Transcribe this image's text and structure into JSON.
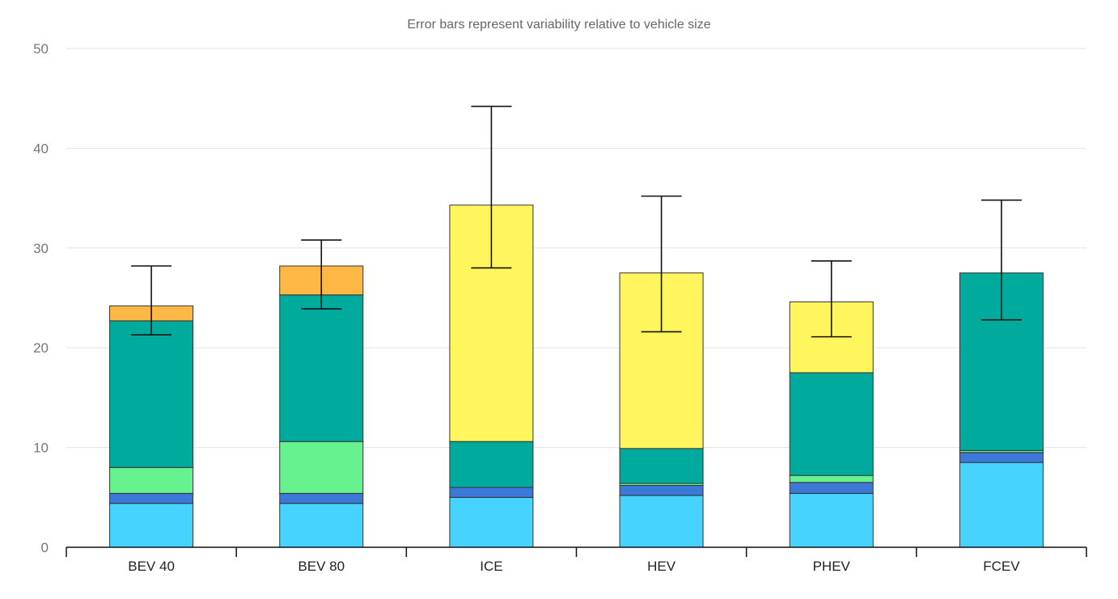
{
  "chart_data": {
    "type": "bar",
    "stacked": true,
    "subtitle": "Error bars represent variability relative to vehicle size",
    "categories": [
      "BEV 40",
      "BEV 80",
      "ICE",
      "HEV",
      "PHEV",
      "FCEV"
    ],
    "ylim": [
      0,
      50
    ],
    "yticks": [
      0,
      10,
      20,
      30,
      40,
      50
    ],
    "grid": true,
    "series": [
      {
        "color": "#47D3FF",
        "values": [
          4.4,
          4.4,
          5.0,
          5.2,
          5.4,
          8.5
        ]
      },
      {
        "color": "#3C78D8",
        "values": [
          1.0,
          1.0,
          1.0,
          1.0,
          1.1,
          1.0
        ]
      },
      {
        "color": "#66F28F",
        "values": [
          2.6,
          5.2,
          0.0,
          0.2,
          0.7,
          0.2
        ]
      },
      {
        "color": "#00AB9D",
        "values": [
          14.7,
          14.7,
          4.6,
          3.5,
          10.3,
          17.8
        ]
      },
      {
        "color": "#FFF55C",
        "values": [
          0.0,
          0.0,
          23.7,
          17.6,
          7.1,
          0.0
        ]
      },
      {
        "color": "#FFB845",
        "values": [
          1.5,
          2.9,
          0.0,
          0.0,
          0.0,
          0.0
        ]
      }
    ],
    "error_bars": [
      {
        "low": 21.3,
        "high": 28.2
      },
      {
        "low": 23.9,
        "high": 30.8
      },
      {
        "low": 28.0,
        "high": 44.2
      },
      {
        "low": 21.6,
        "high": 35.2
      },
      {
        "low": 21.1,
        "high": 28.7
      },
      {
        "low": 22.8,
        "high": 34.8
      }
    ]
  }
}
